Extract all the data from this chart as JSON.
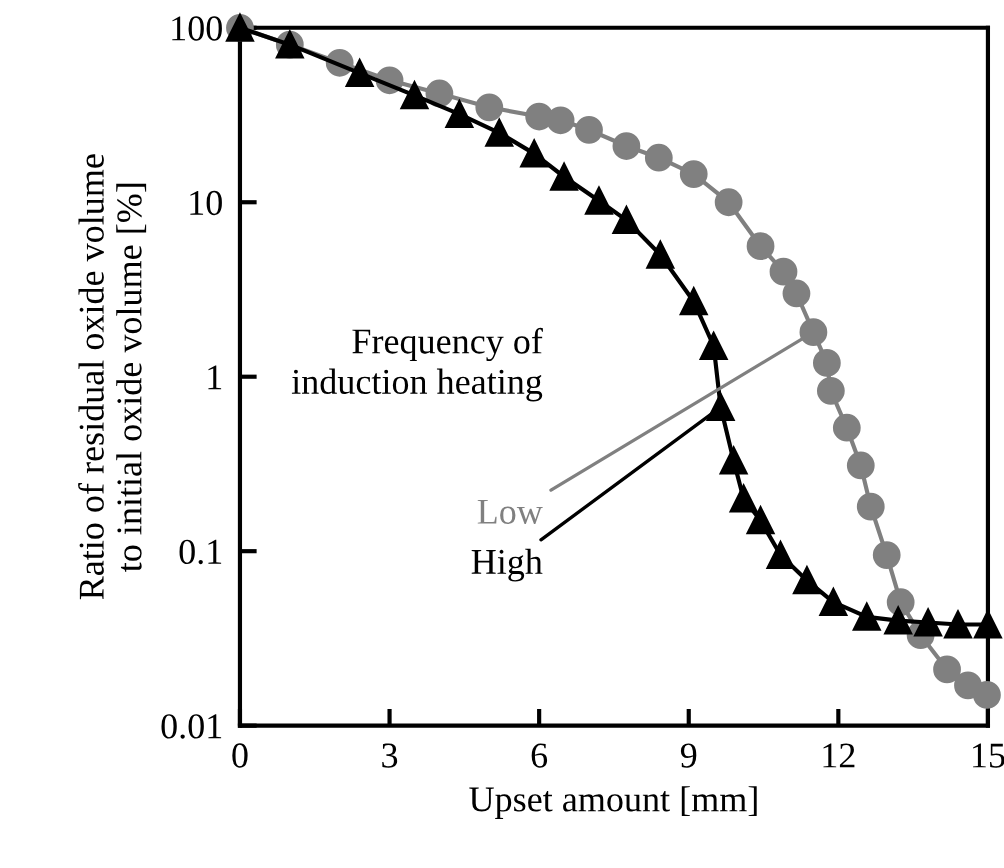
{
  "chart_data": {
    "type": "line",
    "xlabel": "Upset amount [mm]",
    "ylabel": "Ratio of residual oxide volume\nto initial oxide volume [%]",
    "log": true,
    "xlim": [
      0,
      15
    ],
    "ylim": [
      0.01,
      100
    ],
    "xticks": [
      0,
      3,
      6,
      9,
      12,
      15
    ],
    "yticks": [
      0.01,
      0.1,
      1,
      10,
      100
    ],
    "grid": false,
    "legend": "bottom",
    "legend_title": "Frequency of\ninduction heating",
    "series": [
      {
        "name": "Low",
        "color": "#808080",
        "marker": "circle",
        "x": [
          0,
          1,
          2,
          3,
          4,
          5,
          6,
          6.43,
          7,
          7.75,
          8.4,
          9.1,
          9.8,
          10.44,
          10.9,
          11.16,
          11.5,
          11.77,
          11.85,
          12.17,
          12.45,
          12.65,
          12.97,
          13.25,
          13.65,
          14.18,
          14.6,
          14.98
        ],
        "values": [
          100,
          80,
          63,
          50,
          42,
          35,
          31,
          29.5,
          26,
          21,
          18,
          14.5,
          10,
          5.6,
          4,
          3,
          1.8,
          1.2,
          0.83,
          0.51,
          0.31,
          0.18,
          0.095,
          0.051,
          0.033,
          0.021,
          0.017,
          0.015
        ]
      },
      {
        "name": "High",
        "color": "#000000",
        "marker": "triangle",
        "x": [
          0,
          1,
          2.4,
          3.5,
          4.4,
          5.2,
          5.9,
          6.5,
          7.2,
          7.75,
          8.43,
          9.1,
          9.5,
          9.64,
          9.9,
          10.1,
          10.44,
          10.84,
          11.37,
          11.9,
          12.57,
          13.2,
          13.8,
          14.4,
          15
        ],
        "values": [
          100,
          80,
          55,
          41,
          32,
          25,
          19,
          14,
          10.2,
          7.9,
          5,
          2.7,
          1.5,
          0.67,
          0.33,
          0.2,
          0.15,
          0.095,
          0.068,
          0.051,
          0.042,
          0.04,
          0.039,
          0.038,
          0.038
        ]
      }
    ]
  }
}
